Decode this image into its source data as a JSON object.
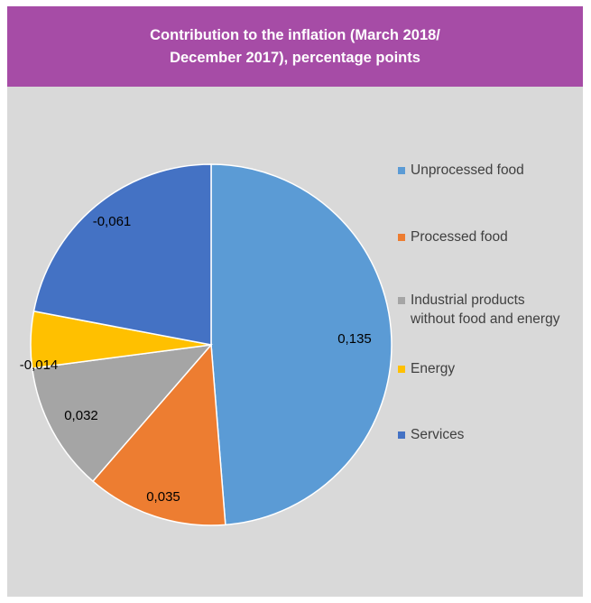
{
  "chart_data": {
    "type": "pie",
    "title": "Contribution to the inflation (March 2018/ December 2017), percentage points",
    "title_lines": [
      "Contribution to the inflation (March 2018/",
      "December 2017), percentage points"
    ],
    "categories": [
      "Unprocessed food",
      "Processed food",
      "Industrial products without food and energy",
      "Energy",
      "Services"
    ],
    "legend_lines": [
      [
        "Unprocessed food"
      ],
      [
        "Processed food"
      ],
      [
        "Industrial products",
        "without food and energy"
      ],
      [
        "Energy"
      ],
      [
        "Services"
      ]
    ],
    "values": [
      0.135,
      0.035,
      0.032,
      -0.014,
      -0.061
    ],
    "data_labels": [
      "0,135",
      "0,035",
      "0,032",
      "-0,014",
      "-0,061"
    ],
    "colors": [
      "#5b9bd5",
      "#ed7d31",
      "#a5a5a5",
      "#ffc000",
      "#4472c4"
    ],
    "legend_position": "right",
    "slice_order": "clockwise from top"
  }
}
